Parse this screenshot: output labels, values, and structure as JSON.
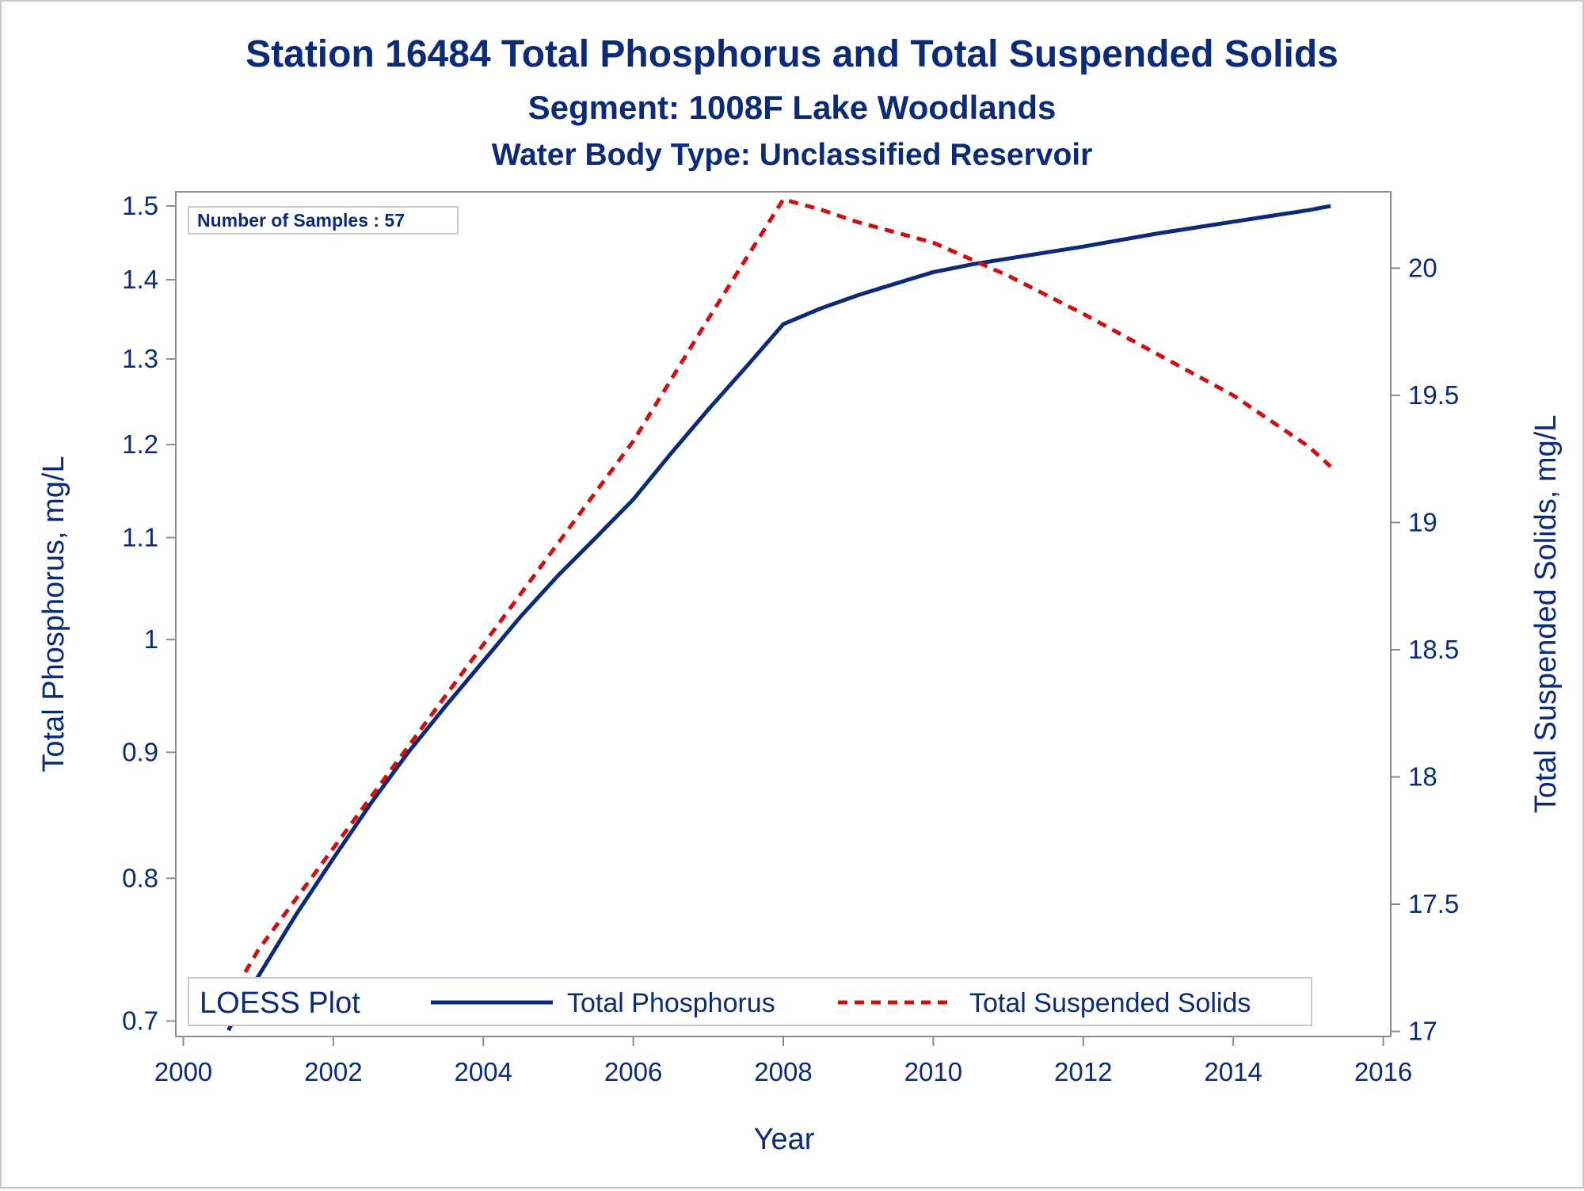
{
  "chart_data": {
    "type": "line",
    "title": "Station 16484  Total Phosphorus and Total Suspended Solids",
    "subtitle": "Segment: 1008F  Lake Woodlands",
    "subtitle2": "Water Body Type: Unclassified Reservoir",
    "xlabel": "Year",
    "ylabel_left": "Total Phosphorus, mg/L",
    "ylabel_right": "Total Suspended Solids, mg/L",
    "x_ticks": [
      2000,
      2002,
      2004,
      2006,
      2008,
      2010,
      2012,
      2014,
      2016
    ],
    "y_left_ticks": [
      0.7,
      0.8,
      0.9,
      1,
      1.1,
      1.2,
      1.3,
      1.4,
      1.5
    ],
    "y_left_tick_labels": [
      "0.7",
      "0.8",
      "0.9",
      "1",
      "1.1",
      "1.2",
      "1.3",
      "1.4",
      "1.5"
    ],
    "y_right_ticks": [
      17,
      17.5,
      18,
      18.5,
      19,
      19.5,
      20
    ],
    "y_right_tick_labels": [
      "17",
      "17.5",
      "18",
      "18.5",
      "19",
      "19.5",
      "20"
    ],
    "y_left_scale": "log",
    "y_right_scale": "linear",
    "xlim": [
      1999.9,
      2016.1
    ],
    "y_left_lim": [
      0.69,
      1.52
    ],
    "y_right_lim": [
      16.98,
      20.3
    ],
    "annotation": "Number of Samples : 57",
    "legend": {
      "title": "LOESS Plot",
      "placement": "bottom-inside",
      "entries": [
        "Total Phosphorus",
        "Total Suspended Solids"
      ]
    },
    "series": [
      {
        "name": "Total Phosphorus",
        "axis": "left",
        "color": "#0b2a78",
        "style": "solid",
        "x": [
          2000.6,
          2001.0,
          2001.5,
          2002.0,
          2002.5,
          2003.0,
          2003.5,
          2004.0,
          2004.5,
          2005.0,
          2005.5,
          2006.0,
          2006.5,
          2007.0,
          2007.5,
          2008.0,
          2008.5,
          2009.0,
          2009.5,
          2010.0,
          2010.5,
          2011.0,
          2011.5,
          2012.0,
          2012.5,
          2013.0,
          2013.5,
          2014.0,
          2014.5,
          2015.0,
          2015.3
        ],
        "y": [
          0.694,
          0.73,
          0.773,
          0.815,
          0.858,
          0.9,
          0.94,
          0.98,
          1.022,
          1.062,
          1.1,
          1.14,
          1.19,
          1.24,
          1.29,
          1.343,
          1.363,
          1.38,
          1.395,
          1.41,
          1.42,
          1.428,
          1.436,
          1.444,
          1.453,
          1.462,
          1.47,
          1.478,
          1.486,
          1.494,
          1.5
        ]
      },
      {
        "name": "Total Suspended Solids",
        "axis": "right",
        "color": "#cc1111",
        "style": "dashed",
        "x": [
          2000.6,
          2001.0,
          2002.0,
          2003.0,
          2004.0,
          2005.0,
          2006.0,
          2007.0,
          2008.0,
          2008.5,
          2009.0,
          2010.0,
          2011.0,
          2012.0,
          2013.0,
          2014.0,
          2015.0,
          2015.3
        ],
        "y": [
          17.12,
          17.32,
          17.72,
          18.12,
          18.52,
          18.92,
          19.32,
          19.8,
          20.27,
          20.23,
          20.18,
          20.1,
          19.97,
          19.82,
          19.66,
          19.5,
          19.3,
          19.22
        ]
      }
    ]
  }
}
